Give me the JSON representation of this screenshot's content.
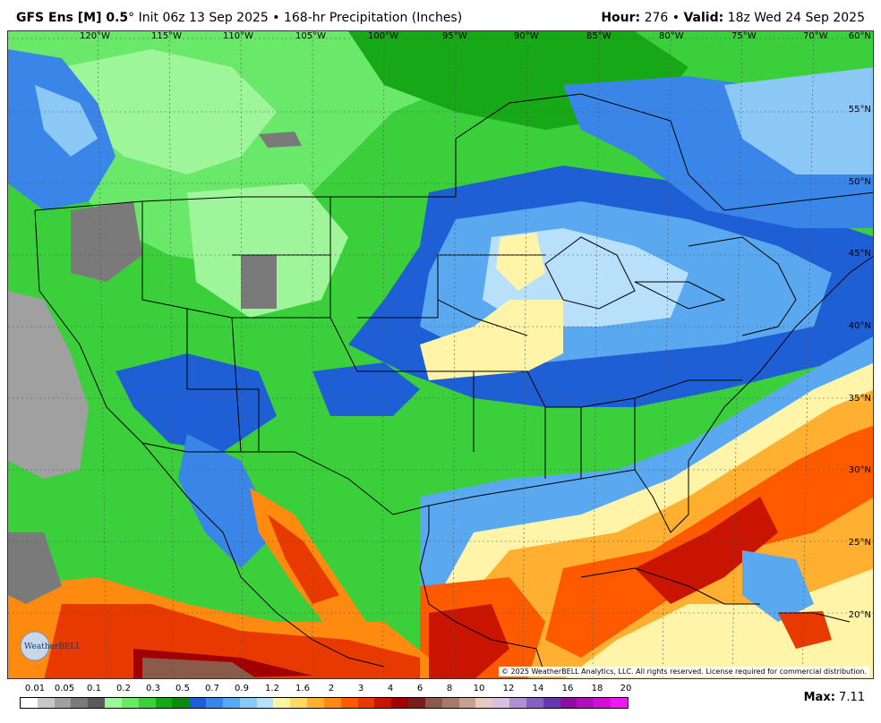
{
  "header": {
    "model": "GFS Ens [M] 0.5",
    "degree": "°",
    "init": "Init 06z 13 Sep 2025",
    "bullet": "•",
    "product": "168-hr Precipitation (Inches)",
    "hour_label": "Hour:",
    "hour_value": "276",
    "valid_label": "Valid:",
    "valid_value": "18z Wed 24 Sep 2025"
  },
  "map": {
    "longitude_labels": [
      "120°W",
      "115°W",
      "110°W",
      "105°W",
      "100°W",
      "95°W",
      "90°W",
      "85°W",
      "80°W",
      "75°W",
      "70°W"
    ],
    "latitude_labels": [
      "60°N",
      "55°N",
      "50°N",
      "45°N",
      "40°N",
      "35°N",
      "30°N",
      "25°N",
      "20°N"
    ],
    "copyright": "© 2025 WeatherBELL Analytics, LLC. All rights reserved. License required for commercial distribution.",
    "logo_text": "WeatherBELL"
  },
  "legend": {
    "labels": [
      "0.01",
      "0.05",
      "0.1",
      "0.2",
      "0.3",
      "0.5",
      "0.7",
      "0.9",
      "1.2",
      "1.6",
      "2",
      "3",
      "4",
      "6",
      "8",
      "10",
      "12",
      "14",
      "16",
      "18",
      "20"
    ],
    "colors": [
      "#ffffff",
      "#c8c8c8",
      "#a0a0a0",
      "#7a7a7a",
      "#5a5a5a",
      "#9ff59a",
      "#6ae86a",
      "#3ccf3c",
      "#17a817",
      "#0d8a0d",
      "#1f5fd6",
      "#3a86e8",
      "#5aa8f0",
      "#8cc8f5",
      "#b8e0fa",
      "#fff4a8",
      "#ffd86a",
      "#ffb030",
      "#ff8a10",
      "#ff5a00",
      "#e83a00",
      "#c81400",
      "#a00000",
      "#781c1c",
      "#8a5a4a",
      "#a87868",
      "#c8a090",
      "#e8c8c0",
      "#d8c0e0",
      "#b090d0",
      "#8860c0",
      "#6838b0",
      "#8c10a0",
      "#b010b8",
      "#d010d0",
      "#f018f0"
    ]
  },
  "max": {
    "label": "Max:",
    "value": "7.11"
  }
}
